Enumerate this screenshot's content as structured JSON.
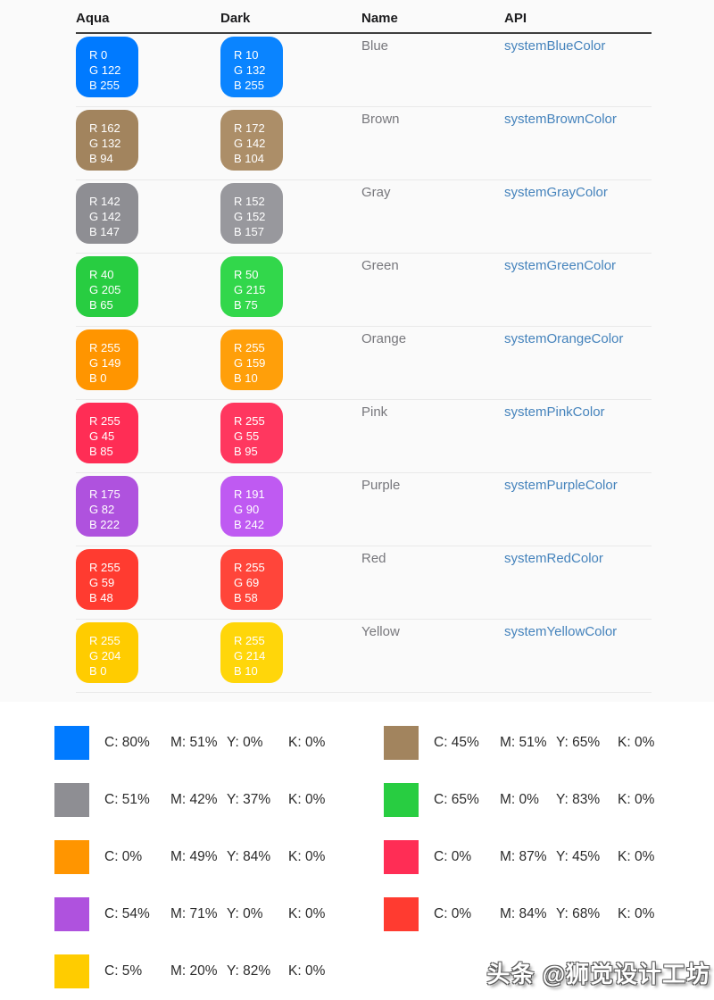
{
  "table": {
    "headers": [
      "Aqua",
      "Dark",
      "Name",
      "API"
    ],
    "rows": [
      {
        "name": "Blue",
        "api": "systemBlueColor",
        "aqua": {
          "hex": "#007AFF",
          "lines": [
            "R 0",
            "G 122",
            "B 255"
          ]
        },
        "dark": {
          "hex": "#0A84FF",
          "lines": [
            "R 10",
            "G 132",
            "B 255"
          ]
        }
      },
      {
        "name": "Brown",
        "api": "systemBrownColor",
        "aqua": {
          "hex": "#A2845E",
          "lines": [
            "R 162",
            "G 132",
            "B 94"
          ]
        },
        "dark": {
          "hex": "#AC8E68",
          "lines": [
            "R 172",
            "G 142",
            "B 104"
          ]
        }
      },
      {
        "name": "Gray",
        "api": "systemGrayColor",
        "aqua": {
          "hex": "#8E8E93",
          "lines": [
            "R 142",
            "G 142",
            "B 147"
          ]
        },
        "dark": {
          "hex": "#98989D",
          "lines": [
            "R 152",
            "G 152",
            "B 157"
          ]
        }
      },
      {
        "name": "Green",
        "api": "systemGreenColor",
        "aqua": {
          "hex": "#28CD41",
          "lines": [
            "R 40",
            "G 205",
            "B 65"
          ]
        },
        "dark": {
          "hex": "#32D74B",
          "lines": [
            "R 50",
            "G 215",
            "B 75"
          ]
        }
      },
      {
        "name": "Orange",
        "api": "systemOrangeColor",
        "aqua": {
          "hex": "#FF9500",
          "lines": [
            "R 255",
            "G 149",
            "B 0"
          ]
        },
        "dark": {
          "hex": "#FF9F0A",
          "lines": [
            "R 255",
            "G 159",
            "B 10"
          ]
        }
      },
      {
        "name": "Pink",
        "api": "systemPinkColor",
        "aqua": {
          "hex": "#FF2D55",
          "lines": [
            "R 255",
            "G 45",
            "B 85"
          ]
        },
        "dark": {
          "hex": "#FF375F",
          "lines": [
            "R 255",
            "G 55",
            "B 95"
          ]
        }
      },
      {
        "name": "Purple",
        "api": "systemPurpleColor",
        "aqua": {
          "hex": "#AF52DE",
          "lines": [
            "R 175",
            "G 82",
            "B 222"
          ]
        },
        "dark": {
          "hex": "#BF5AF2",
          "lines": [
            "R 191",
            "G 90",
            "B 242"
          ]
        }
      },
      {
        "name": "Red",
        "api": "systemRedColor",
        "aqua": {
          "hex": "#FF3B30",
          "lines": [
            "R 255",
            "G 59",
            "B 48"
          ]
        },
        "dark": {
          "hex": "#FF453A",
          "lines": [
            "R 255",
            "G 69",
            "B 58"
          ]
        }
      },
      {
        "name": "Yellow",
        "api": "systemYellowColor",
        "aqua": {
          "hex": "#FFCC00",
          "lines": [
            "R 255",
            "G 204",
            "B 0"
          ]
        },
        "dark": {
          "hex": "#FFD60A",
          "lines": [
            "R 255",
            "G 214",
            "B 10"
          ]
        }
      }
    ]
  },
  "cmyk": {
    "rows": [
      [
        {
          "name": "Blue",
          "hex": "#007AFF",
          "values": [
            "C: 80%",
            "M: 51%",
            "Y: 0%",
            "K: 0%"
          ]
        },
        {
          "name": "Brown",
          "hex": "#A2845E",
          "values": [
            "C: 45%",
            "M: 51%",
            "Y: 65%",
            "K: 0%"
          ]
        }
      ],
      [
        {
          "name": "Gray",
          "hex": "#8E8E93",
          "values": [
            "C: 51%",
            "M: 42%",
            "Y: 37%",
            "K: 0%"
          ]
        },
        {
          "name": "Green",
          "hex": "#28CD41",
          "values": [
            "C: 65%",
            "M: 0%",
            "Y: 83%",
            "K: 0%"
          ]
        }
      ],
      [
        {
          "name": "Orange",
          "hex": "#FF9500",
          "values": [
            "C: 0%",
            "M: 49%",
            "Y: 84%",
            "K: 0%"
          ]
        },
        {
          "name": "Pink",
          "hex": "#FF2D55",
          "values": [
            "C: 0%",
            "M: 87%",
            "Y: 45%",
            "K: 0%"
          ]
        }
      ],
      [
        {
          "name": "Purple",
          "hex": "#AF52DE",
          "values": [
            "C: 54%",
            "M: 71%",
            "Y: 0%",
            "K: 0%"
          ]
        },
        {
          "name": "Red",
          "hex": "#FF3B30",
          "values": [
            "C: 0%",
            "M: 84%",
            "Y: 68%",
            "K: 0%"
          ]
        }
      ],
      [
        {
          "name": "Yellow",
          "hex": "#FFCC00",
          "values": [
            "C: 5%",
            "M: 20%",
            "Y: 82%",
            "K: 0%"
          ]
        }
      ]
    ]
  },
  "watermark": {
    "text": "头条 @狮觉设计工坊"
  }
}
